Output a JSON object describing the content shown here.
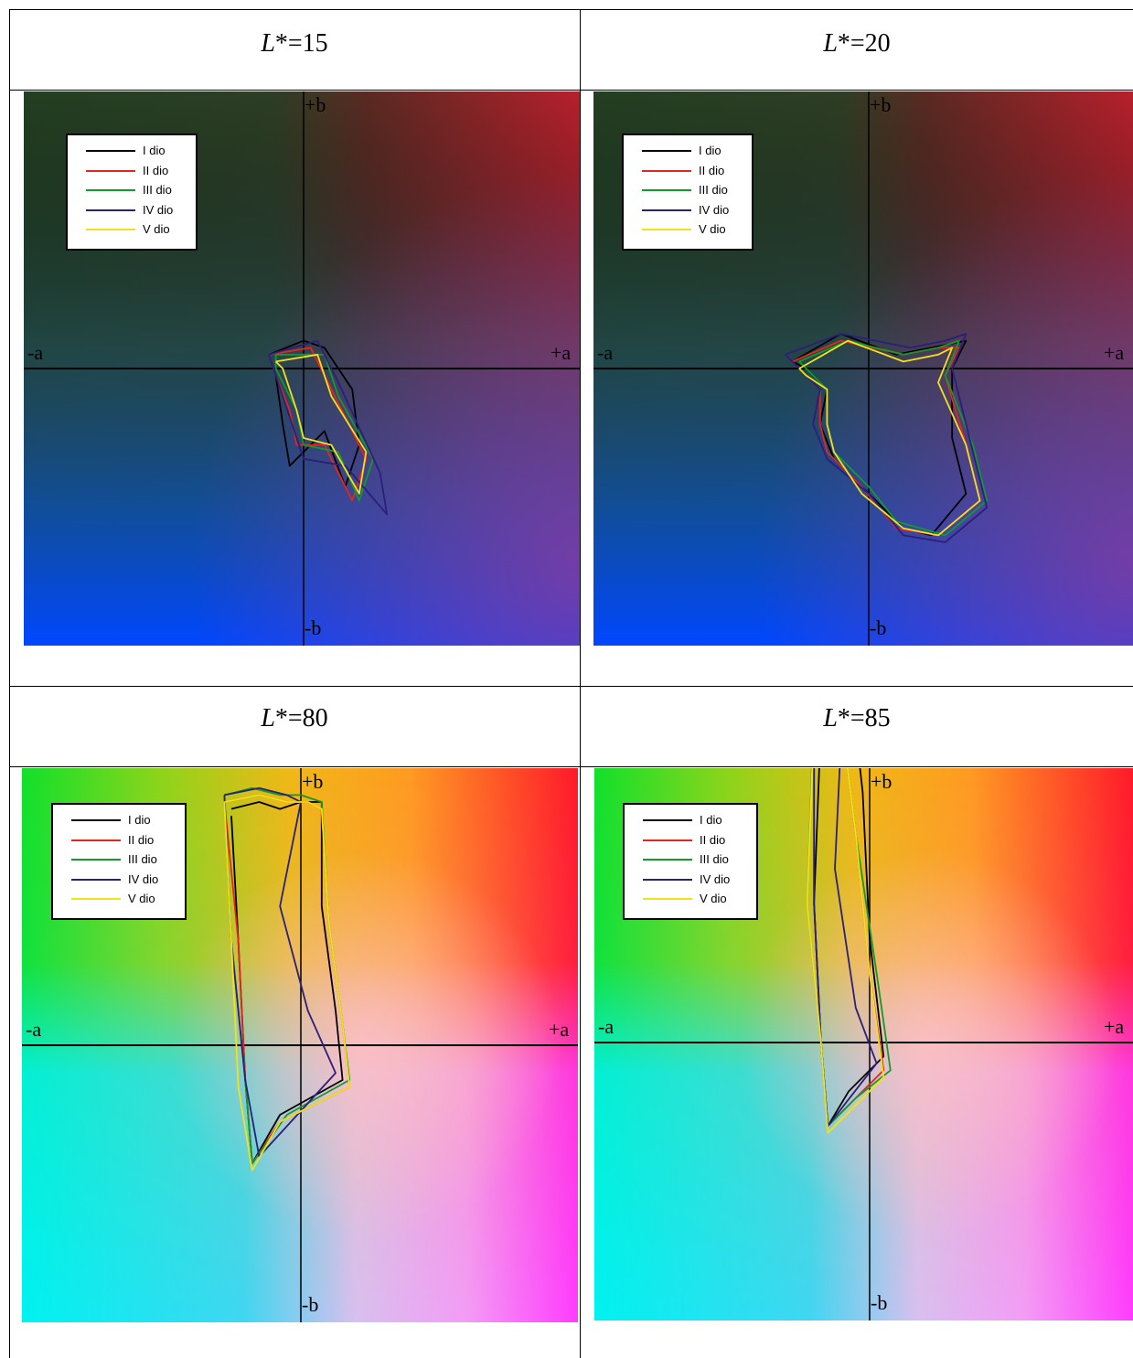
{
  "panels": [
    {
      "title_var": "L",
      "title_suffix": "*=15"
    },
    {
      "title_var": "L",
      "title_suffix": "*=20"
    },
    {
      "title_var": "L",
      "title_suffix": "*=80"
    },
    {
      "title_var": "L",
      "title_suffix": "*=85"
    }
  ],
  "axis_labels": {
    "plus_b": "+b",
    "minus_b": "-b",
    "minus_a": "-a",
    "plus_a": "+a"
  },
  "legend": [
    {
      "label": "I dio",
      "color": "#000000"
    },
    {
      "label": "II dio",
      "color": "#e8241c"
    },
    {
      "label": "III dio",
      "color": "#129a2a"
    },
    {
      "label": "IV dio",
      "color": "#2b1f7a"
    },
    {
      "label": "V dio",
      "color": "#f2e21a"
    }
  ],
  "chart_data": [
    {
      "type": "line",
      "title": "L*=15",
      "series": [
        {
          "name": "I dio",
          "color": "#000000",
          "points": [
            [
              -5,
              2
            ],
            [
              0,
              4
            ],
            [
              3,
              3
            ],
            [
              7,
              -3
            ],
            [
              8,
              -11
            ],
            [
              6,
              -17
            ],
            [
              3,
              -9
            ],
            [
              -2,
              -14
            ],
            [
              -3,
              -8
            ],
            [
              -4,
              -1
            ],
            [
              -5,
              2
            ]
          ]
        },
        {
          "name": "II dio",
          "color": "#e8241c",
          "points": [
            [
              -5,
              2
            ],
            [
              1,
              3
            ],
            [
              4,
              -3
            ],
            [
              9,
              -13
            ],
            [
              7,
              -19
            ],
            [
              3,
              -11
            ],
            [
              -1,
              -11
            ],
            [
              -2,
              -6
            ],
            [
              -4,
              -1
            ],
            [
              -5,
              2
            ]
          ]
        },
        {
          "name": "III dio",
          "color": "#129a2a",
          "points": [
            [
              -4,
              2
            ],
            [
              3,
              2
            ],
            [
              5,
              -4
            ],
            [
              10,
              -13
            ],
            [
              8,
              -19
            ],
            [
              5,
              -12
            ],
            [
              0,
              -11
            ],
            [
              -1,
              -6
            ],
            [
              -4,
              0
            ],
            [
              -4,
              2
            ]
          ]
        },
        {
          "name": "IV dio",
          "color": "#2b1f7a",
          "points": [
            [
              -5,
              2
            ],
            [
              2,
              4
            ],
            [
              5,
              -2
            ],
            [
              11,
              -15
            ],
            [
              12,
              -21
            ],
            [
              6,
              -14
            ],
            [
              0,
              -13
            ],
            [
              -2,
              -7
            ],
            [
              -4,
              -1
            ],
            [
              -5,
              2
            ]
          ]
        },
        {
          "name": "V dio",
          "color": "#f2e21a",
          "points": [
            [
              -4,
              1
            ],
            [
              2,
              2
            ],
            [
              4,
              -4
            ],
            [
              9,
              -12
            ],
            [
              8,
              -18
            ],
            [
              4,
              -11
            ],
            [
              0,
              -10
            ],
            [
              -1,
              -6
            ],
            [
              -3,
              0
            ],
            [
              -4,
              1
            ]
          ]
        }
      ]
    },
    {
      "type": "line",
      "title": "L*=20",
      "series": [
        {
          "name": "I dio",
          "color": "#000000",
          "points": [
            [
              -11,
              1
            ],
            [
              -4,
              5
            ],
            [
              4,
              2
            ],
            [
              9,
              3
            ],
            [
              14,
              4
            ],
            [
              12,
              0
            ],
            [
              12,
              -10
            ],
            [
              14,
              -18
            ],
            [
              9,
              -24
            ],
            [
              5,
              -23
            ],
            [
              0,
              -18
            ],
            [
              -5,
              -13
            ],
            [
              -7,
              -8
            ],
            [
              -6,
              -3
            ],
            [
              -9,
              0
            ],
            [
              -11,
              1
            ]
          ]
        },
        {
          "name": "II dio",
          "color": "#e8241c",
          "points": [
            [
              -11,
              1
            ],
            [
              -4,
              4
            ],
            [
              5,
              2
            ],
            [
              10,
              3
            ],
            [
              13,
              3
            ],
            [
              11,
              -1
            ],
            [
              14,
              -11
            ],
            [
              16,
              -19
            ],
            [
              10,
              -24
            ],
            [
              4,
              -23
            ],
            [
              -1,
              -17
            ],
            [
              -6,
              -12
            ],
            [
              -7,
              -8
            ],
            [
              -7,
              -3
            ],
            [
              -10,
              0
            ],
            [
              -11,
              1
            ]
          ]
        },
        {
          "name": "III dio",
          "color": "#129a2a",
          "points": [
            [
              -10,
              1
            ],
            [
              -3,
              4
            ],
            [
              5,
              2
            ],
            [
              10,
              3
            ],
            [
              13,
              4
            ],
            [
              11,
              -1
            ],
            [
              15,
              -11
            ],
            [
              17,
              -19
            ],
            [
              11,
              -24
            ],
            [
              4,
              -22
            ],
            [
              0,
              -17
            ],
            [
              -5,
              -12
            ],
            [
              -6,
              -8
            ],
            [
              -6,
              -3
            ],
            [
              -9,
              0
            ],
            [
              -10,
              1
            ]
          ]
        },
        {
          "name": "IV dio",
          "color": "#2b1f7a",
          "points": [
            [
              -12,
              2
            ],
            [
              -4,
              5
            ],
            [
              6,
              3
            ],
            [
              11,
              4
            ],
            [
              14,
              5
            ],
            [
              12,
              0
            ],
            [
              15,
              -12
            ],
            [
              17,
              -20
            ],
            [
              11,
              -25
            ],
            [
              5,
              -24
            ],
            [
              0,
              -18
            ],
            [
              -6,
              -13
            ],
            [
              -8,
              -8
            ],
            [
              -7,
              -3
            ],
            [
              -10,
              0
            ],
            [
              -12,
              2
            ]
          ]
        },
        {
          "name": "V dio",
          "color": "#f2e21a",
          "points": [
            [
              -10,
              0
            ],
            [
              -3,
              4
            ],
            [
              5,
              1
            ],
            [
              10,
              2
            ],
            [
              12,
              3
            ],
            [
              10,
              -2
            ],
            [
              14,
              -11
            ],
            [
              16,
              -19
            ],
            [
              10,
              -24
            ],
            [
              5,
              -23
            ],
            [
              -1,
              -18
            ],
            [
              -5,
              -12
            ],
            [
              -6,
              -8
            ],
            [
              -6,
              -3
            ],
            [
              -9,
              -1
            ],
            [
              -10,
              0
            ]
          ]
        }
      ]
    },
    {
      "type": "line",
      "title": "L*=80",
      "series": [
        {
          "name": "I dio",
          "color": "#000000",
          "points": [
            [
              -10,
              34
            ],
            [
              -6,
              35
            ],
            [
              -3,
              34
            ],
            [
              0,
              35
            ],
            [
              3,
              35
            ],
            [
              3,
              20
            ],
            [
              5,
              5
            ],
            [
              6,
              -5
            ],
            [
              -3,
              -10
            ],
            [
              -7,
              -17
            ],
            [
              -8,
              -5
            ],
            [
              -9,
              15
            ],
            [
              -10,
              33
            ]
          ]
        },
        {
          "name": "II dio",
          "color": "#e8241c",
          "points": [
            [
              -11,
              35
            ],
            [
              -6,
              36
            ],
            [
              -2,
              35
            ],
            [
              1,
              35
            ],
            [
              3,
              34
            ],
            [
              4,
              18
            ],
            [
              6,
              3
            ],
            [
              7,
              -6
            ],
            [
              -3,
              -11
            ],
            [
              -7,
              -17
            ],
            [
              -8,
              -5
            ],
            [
              -9,
              15
            ],
            [
              -11,
              35
            ]
          ]
        },
        {
          "name": "III dio",
          "color": "#129a2a",
          "points": [
            [
              -11,
              36
            ],
            [
              -7,
              37
            ],
            [
              -3,
              36
            ],
            [
              0,
              36
            ],
            [
              3,
              35
            ],
            [
              4,
              18
            ],
            [
              6,
              3
            ],
            [
              7,
              -5
            ],
            [
              -2,
              -10
            ],
            [
              -7,
              -17
            ],
            [
              -8,
              -5
            ],
            [
              -10,
              15
            ],
            [
              -11,
              36
            ]
          ]
        },
        {
          "name": "IV dio",
          "color": "#2b1f7a",
          "points": [
            [
              -11,
              36
            ],
            [
              -6,
              37
            ],
            [
              -2,
              36
            ],
            [
              0,
              35
            ],
            [
              -3,
              20
            ],
            [
              1,
              5
            ],
            [
              5,
              -4
            ],
            [
              -6,
              -16
            ],
            [
              -8,
              -5
            ],
            [
              -10,
              15
            ],
            [
              -11,
              36
            ]
          ]
        },
        {
          "name": "V dio",
          "color": "#f2e21a",
          "points": [
            [
              -11,
              35
            ],
            [
              -6,
              36
            ],
            [
              -2,
              35
            ],
            [
              1,
              35
            ],
            [
              3,
              34
            ],
            [
              4,
              18
            ],
            [
              6,
              3
            ],
            [
              7,
              -6
            ],
            [
              -3,
              -11
            ],
            [
              -7,
              -18
            ],
            [
              -9,
              -6
            ],
            [
              -10,
              15
            ],
            [
              -11,
              35
            ]
          ]
        }
      ]
    },
    {
      "type": "line",
      "title": "L*=85",
      "series": [
        {
          "name": "I dio",
          "color": "#000000",
          "points": [
            [
              -7,
              46
            ],
            [
              -5,
              45
            ],
            [
              -2,
              45
            ],
            [
              -1,
              36
            ],
            [
              0,
              15
            ],
            [
              2,
              -2
            ],
            [
              -3,
              -7
            ],
            [
              -6,
              -12
            ],
            [
              -7,
              0
            ],
            [
              -8,
              20
            ],
            [
              -7,
              46
            ]
          ]
        },
        {
          "name": "II dio",
          "color": "#e8241c",
          "points": [
            [
              -8,
              47
            ],
            [
              -6,
              47
            ],
            [
              -4,
              46
            ],
            [
              -2,
              30
            ],
            [
              0,
              10
            ],
            [
              2,
              -4
            ],
            [
              -2,
              -8
            ],
            [
              -6,
              -12
            ],
            [
              -7,
              0
            ],
            [
              -8,
              20
            ],
            [
              -8,
              47
            ]
          ]
        },
        {
          "name": "III dio",
          "color": "#129a2a",
          "points": [
            [
              -8,
              48
            ],
            [
              -6,
              48
            ],
            [
              -4,
              46
            ],
            [
              -2,
              30
            ],
            [
              1,
              10
            ],
            [
              3,
              -4
            ],
            [
              -2,
              -8
            ],
            [
              -6,
              -12
            ],
            [
              -7,
              0
            ],
            [
              -9,
              20
            ],
            [
              -8,
              48
            ]
          ]
        },
        {
          "name": "IV dio",
          "color": "#2b1f7a",
          "points": [
            [
              -8,
              47
            ],
            [
              -6,
              48
            ],
            [
              -4,
              46
            ],
            [
              -5,
              25
            ],
            [
              -2,
              5
            ],
            [
              1,
              -3
            ],
            [
              -6,
              -12
            ],
            [
              -7,
              0
            ],
            [
              -8,
              20
            ],
            [
              -8,
              47
            ]
          ]
        },
        {
          "name": "V dio",
          "color": "#f2e21a",
          "points": [
            [
              -8,
              46
            ],
            [
              -6,
              47
            ],
            [
              -4,
              46
            ],
            [
              -2,
              30
            ],
            [
              0,
              10
            ],
            [
              2,
              -5
            ],
            [
              -2,
              -9
            ],
            [
              -6,
              -13
            ],
            [
              -7,
              0
            ],
            [
              -9,
              20
            ],
            [
              -8,
              46
            ]
          ]
        }
      ]
    }
  ]
}
